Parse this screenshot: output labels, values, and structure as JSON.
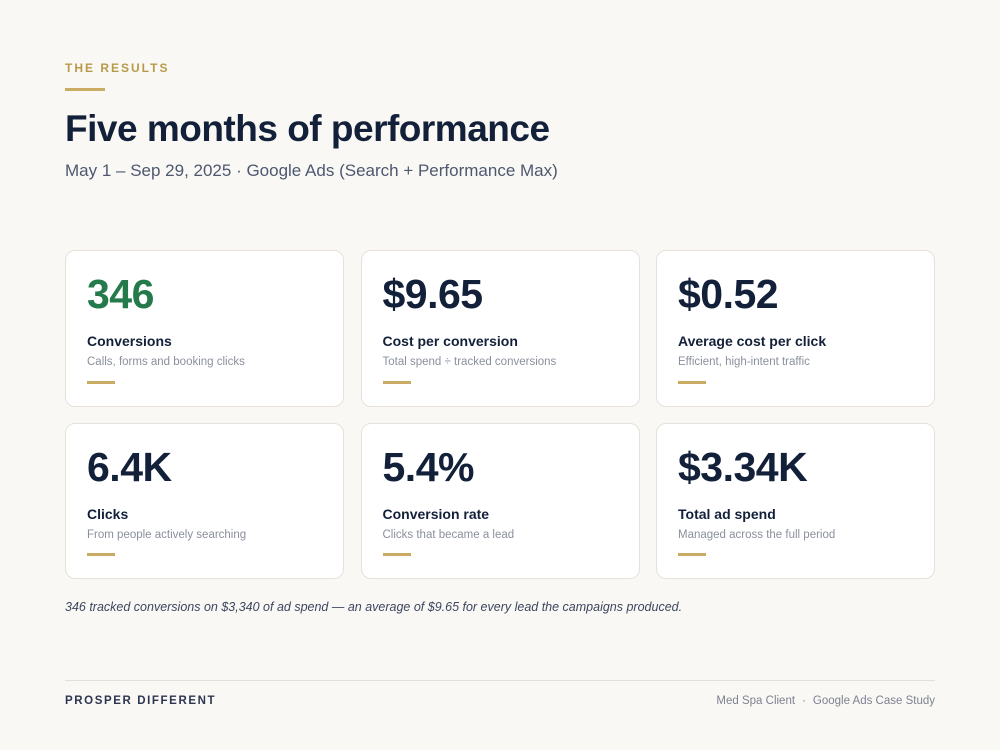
{
  "header": {
    "eyebrow": "THE RESULTS",
    "title": "Five months of performance",
    "subtitle": "May 1 – Sep 29, 2025  ·  Google Ads (Search + Performance Max)"
  },
  "metrics": [
    {
      "value": "346",
      "label": "Conversions",
      "description": "Calls, forms and booking clicks"
    },
    {
      "value": "$9.65",
      "label": "Cost per conversion",
      "description": "Total spend ÷ tracked conversions"
    },
    {
      "value": "$0.52",
      "label": "Average cost per click",
      "description": "Efficient, high-intent traffic"
    },
    {
      "value": "6.4K",
      "label": "Clicks",
      "description": "From people actively searching"
    },
    {
      "value": "5.4%",
      "label": "Conversion rate",
      "description": "Clicks that became a lead"
    },
    {
      "value": "$3.34K",
      "label": "Total ad spend",
      "description": "Managed across the full period"
    }
  ],
  "summary": "346 tracked conversions on $3,340 of ad spend — an average of $9.65 for every lead the campaigns produced.",
  "footer": {
    "brand": "PROSPER DIFFERENT",
    "client": "Med Spa Client",
    "separator": "·",
    "study": "Google Ads Case Study"
  },
  "colors": {
    "background": "#faf8f4",
    "accent_gold": "#c9ab64",
    "highlight_green": "#247a4a",
    "navy": "#13203a"
  }
}
